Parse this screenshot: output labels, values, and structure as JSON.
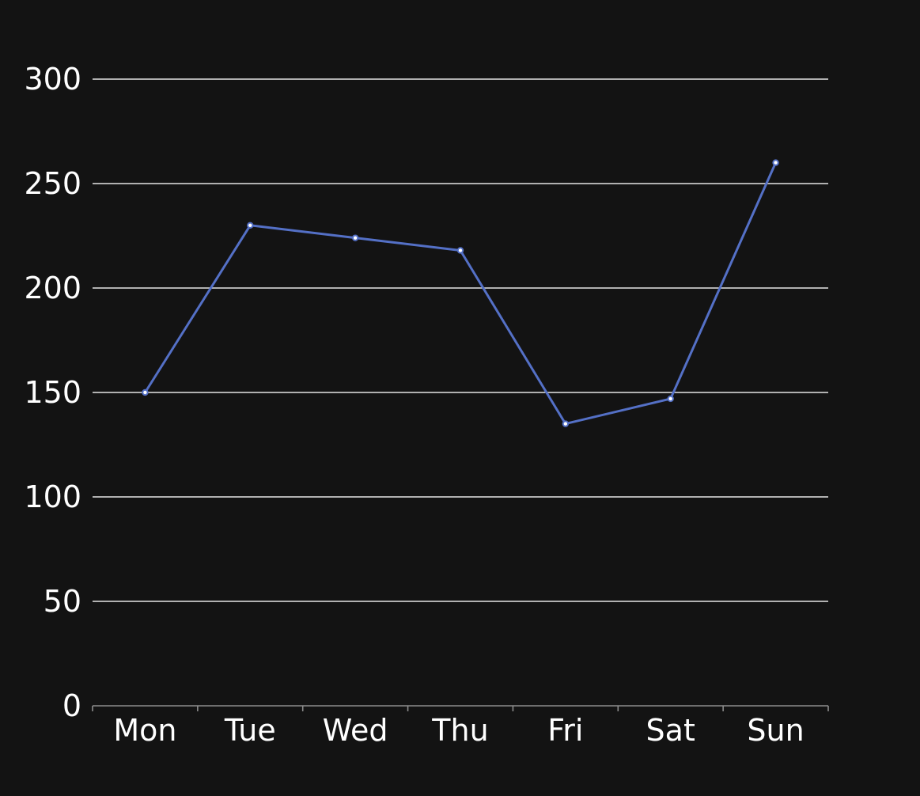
{
  "chart_data": {
    "type": "line",
    "title": "",
    "xlabel": "",
    "ylabel": "",
    "categories": [
      "Mon",
      "Tue",
      "Wed",
      "Thu",
      "Fri",
      "Sat",
      "Sun"
    ],
    "series": [
      {
        "values": [
          150,
          230,
          224,
          218,
          135,
          147,
          260
        ],
        "color": "#5470c6"
      }
    ],
    "ylim": [
      0,
      300
    ],
    "yticks": [
      0,
      50,
      100,
      150,
      200,
      250,
      300
    ],
    "grid": true,
    "legend": "none"
  }
}
